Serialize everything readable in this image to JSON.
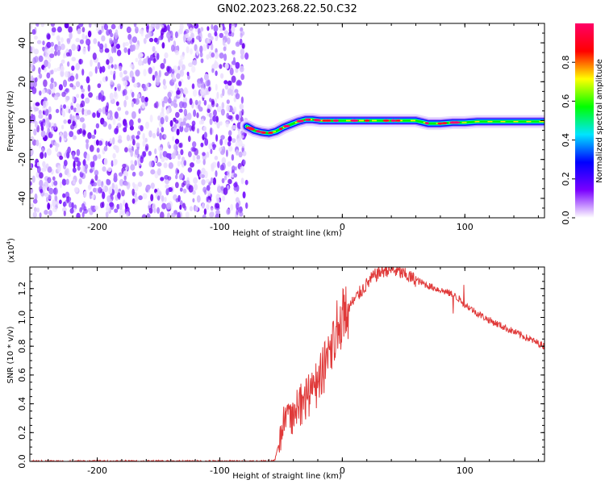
{
  "figure_title": "GN02.2023.268.22.50.C32",
  "chart_data": [
    {
      "type": "heatmap",
      "xlabel": "Height of straight line (km)",
      "ylabel": "Frequency (Hz)",
      "xlim": [
        -255,
        165
      ],
      "ylim": [
        -50,
        50
      ],
      "xticks": [
        -200,
        -100,
        0,
        100
      ],
      "yticks": [
        -40,
        -20,
        0,
        20,
        40
      ],
      "noise_region_x": [
        -255,
        -78
      ],
      "signal_start_x": -78,
      "signal_trace": {
        "x": [
          -78,
          -72,
          -66,
          -60,
          -54,
          -48,
          -42,
          -36,
          -30,
          -24,
          -18,
          -12,
          -6,
          0,
          10,
          20,
          30,
          40,
          50,
          60,
          70,
          80,
          90,
          100,
          110,
          120,
          130,
          140,
          150,
          165
        ],
        "frequency": [
          -3,
          -5,
          -6,
          -6.5,
          -5.5,
          -3.5,
          -2,
          -0.5,
          0.5,
          0.5,
          0,
          0,
          0,
          0,
          0,
          0,
          0,
          0,
          0,
          0,
          -1.5,
          -1.5,
          -1,
          -1,
          -0.5,
          -0.5,
          -0.5,
          -0.5,
          -0.5,
          -0.5
        ]
      },
      "colorbar": {
        "label": "Normalized spectral amplitude",
        "ticks": [
          "0.0",
          "0.2",
          "0.4",
          "0.6",
          "0.8"
        ],
        "range": [
          0,
          1
        ],
        "colors": [
          "#ffffff",
          "#7a00ff",
          "#0000ff",
          "#00e5ff",
          "#00ff00",
          "#ffff00",
          "#ff0000",
          "#ff0066"
        ]
      }
    },
    {
      "type": "line",
      "xlabel": "Height of straight line (km)",
      "ylabel": "SNR (10 * v/v)",
      "scale_label": "(x10",
      "scale_exp": "4",
      "scale_close": ")",
      "xlim": [
        -255,
        165
      ],
      "ylim": [
        0,
        1.35
      ],
      "xticks": [
        -200,
        -100,
        0,
        100
      ],
      "yticks": [
        "0.0",
        "0.2",
        "0.4",
        "0.6",
        "0.8",
        "1.0",
        "1.2"
      ],
      "color": "#e03a3a",
      "series": [
        {
          "x": [
            -255,
            -200,
            -150,
            -100,
            -60,
            -55,
            -52,
            -50,
            -45,
            -40,
            -35,
            -30,
            -25,
            -20,
            -15,
            -10,
            -5,
            0,
            5,
            10,
            15,
            20,
            25,
            30,
            35,
            40,
            45,
            50,
            60,
            70,
            80,
            90,
            95,
            100,
            110,
            120,
            130,
            140,
            150,
            160,
            165
          ],
          "values": [
            0.0,
            0.0,
            0.0,
            0.0,
            0.0,
            0.01,
            0.12,
            0.22,
            0.28,
            0.33,
            0.38,
            0.43,
            0.48,
            0.55,
            0.65,
            0.78,
            0.92,
            1.0,
            1.07,
            1.12,
            1.18,
            1.23,
            1.28,
            1.31,
            1.33,
            1.33,
            1.32,
            1.3,
            1.26,
            1.22,
            1.19,
            1.16,
            1.13,
            1.09,
            1.03,
            0.98,
            0.94,
            0.9,
            0.86,
            0.82,
            0.8
          ]
        }
      ]
    }
  ]
}
